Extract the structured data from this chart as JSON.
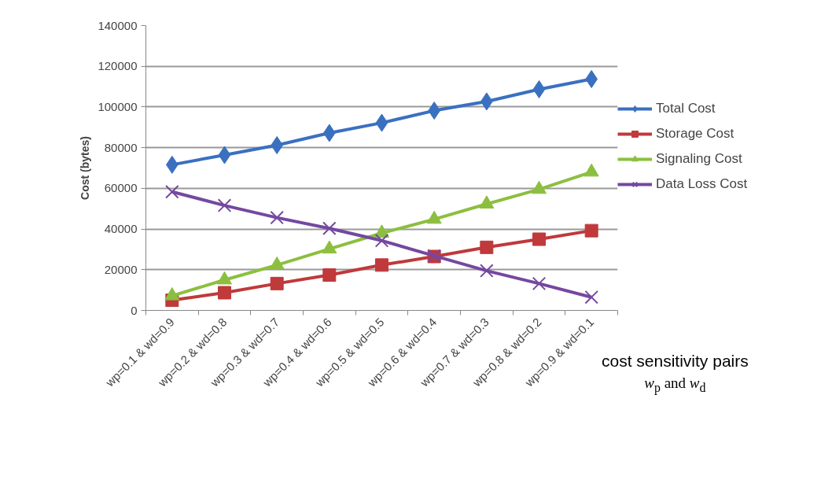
{
  "chart_data": {
    "type": "line",
    "ylabel": "Cost (bytes)",
    "xlabel": "cost sensitivity pairs w$_{p}$ and w$_{d}$",
    "categories": [
      "wp=0.1 & wd=0.9",
      "wp=0.2 & wd=0.8",
      "wp=0.3 & wd=0.7",
      "wp=0.4 & wd=0.6",
      "wp=0.5 & wd=0.5",
      "wp=0.6 & wd=0.4",
      "wp=0.7 & wd=0.3",
      "wp=0.8 & wd=0.2",
      "wp=0.9 & wd=0.1"
    ],
    "series": [
      {
        "name": "Total Cost",
        "color": "#3a70c0",
        "marker": "diamond",
        "values": [
          71600,
          76400,
          81200,
          87200,
          92200,
          98200,
          102700,
          108700,
          113700
        ]
      },
      {
        "name": "Storage Cost",
        "color": "#c0393b",
        "marker": "square",
        "values": [
          5000,
          8700,
          13200,
          17400,
          22300,
          26500,
          31000,
          35000,
          39200
        ]
      },
      {
        "name": "Signaling Cost",
        "color": "#8cbf3f",
        "marker": "triangle",
        "values": [
          7200,
          15000,
          22300,
          30200,
          38000,
          44800,
          52300,
          59500,
          68000
        ]
      },
      {
        "name": "Data Loss Cost",
        "color": "#7448a0",
        "marker": "cross",
        "values": [
          58300,
          51600,
          45600,
          40300,
          34300,
          26800,
          19500,
          13200,
          6500
        ]
      }
    ],
    "ylim": [
      0,
      140000
    ],
    "yticks": [
      0,
      20000,
      40000,
      60000,
      80000,
      100000,
      120000,
      140000
    ],
    "grid": "y",
    "legend": "right",
    "line_style": "solid"
  }
}
